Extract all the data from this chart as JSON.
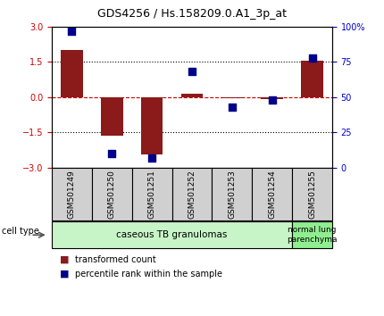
{
  "title": "GDS4256 / Hs.158209.0.A1_3p_at",
  "samples": [
    "GSM501249",
    "GSM501250",
    "GSM501251",
    "GSM501252",
    "GSM501253",
    "GSM501254",
    "GSM501255"
  ],
  "transformed_count": [
    2.0,
    -1.65,
    -2.45,
    0.15,
    -0.05,
    -0.07,
    1.55
  ],
  "percentile_rank": [
    97,
    10,
    7,
    68,
    43,
    48,
    78
  ],
  "ylim_left": [
    -3,
    3
  ],
  "ylim_right": [
    0,
    100
  ],
  "yticks_left": [
    -3,
    -1.5,
    0,
    1.5,
    3
  ],
  "yticks_right": [
    0,
    25,
    50,
    75,
    100
  ],
  "ytick_labels_right": [
    "0",
    "25",
    "50",
    "75",
    "100%"
  ],
  "bar_color": "#8B1A1A",
  "scatter_color": "#00008B",
  "legend_items": [
    {
      "label": "transformed count",
      "color": "#8B1A1A"
    },
    {
      "label": "percentile rank within the sample",
      "color": "#00008B"
    }
  ],
  "cell_type_label": "cell type",
  "background_color": "#ffffff",
  "plot_bg_color": "#ffffff",
  "zero_line_color": "#cc0000",
  "dotted_line_color": "#000000",
  "axis_label_color_left": "#cc0000",
  "axis_label_color_right": "#0000cc",
  "sample_box_color": "#d0d0d0",
  "group1_color": "#c8f5c8",
  "group2_color": "#90ee90",
  "group1_n": 6,
  "group1_label": "caseous TB granulomas",
  "group2_label": "normal lung\nparenchyma"
}
